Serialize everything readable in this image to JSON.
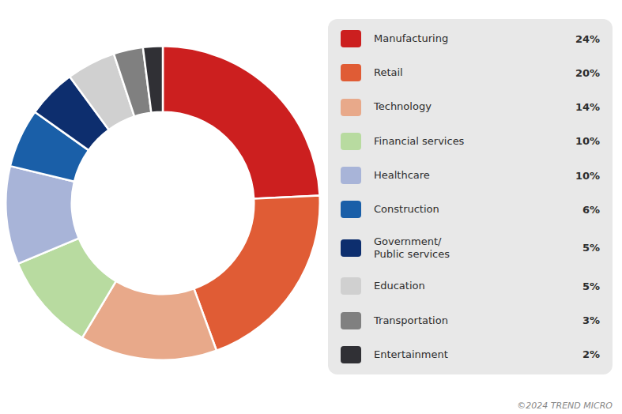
{
  "chart_data": {
    "type": "doughnut",
    "categories": [
      "Manufacturing",
      "Retail",
      "Technology",
      "Financial services",
      "Healthcare",
      "Construction",
      "Government/\nPublic services",
      "Education",
      "Transportation",
      "Entertainment"
    ],
    "values": [
      24,
      20,
      14,
      10,
      10,
      6,
      5,
      5,
      3,
      2
    ],
    "value_labels": [
      "24%",
      "20%",
      "14%",
      "10%",
      "10%",
      "6%",
      "5%",
      "5%",
      "3%",
      "2%"
    ],
    "colors": [
      "#cc1f1f",
      "#e05c35",
      "#e8a98a",
      "#b8dba0",
      "#a8b4d8",
      "#1a5fa8",
      "#0d2e6e",
      "#d0d0d0",
      "#808080",
      "#303035"
    ],
    "legend": "right",
    "annotations": [
      "©2024 TREND MICRO"
    ]
  }
}
